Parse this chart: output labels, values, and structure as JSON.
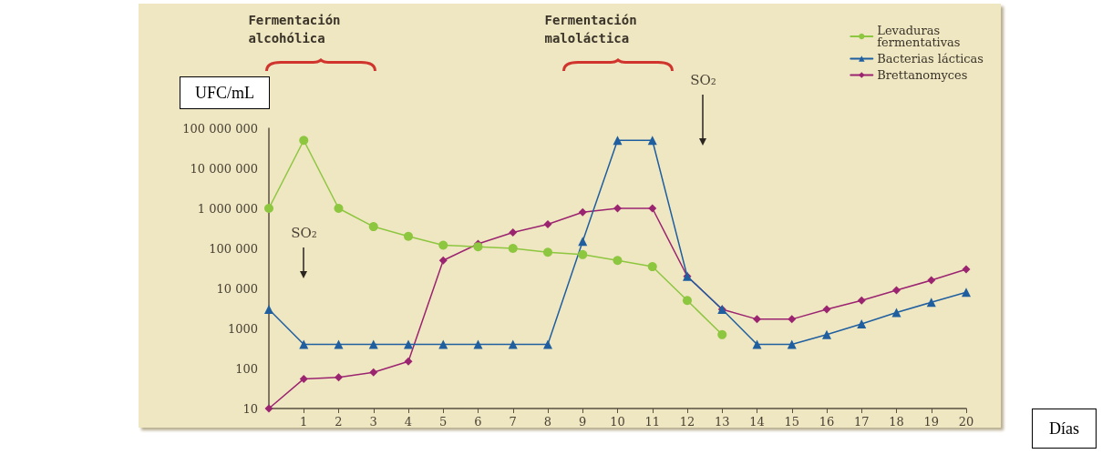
{
  "chart_data": {
    "type": "line",
    "xlabel": "Días",
    "ylabel": "UFC/mL",
    "x": [
      0,
      1,
      2,
      3,
      4,
      5,
      6,
      7,
      8,
      9,
      10,
      11,
      12,
      13,
      14,
      15,
      16,
      17,
      18,
      19,
      20
    ],
    "xlim": [
      0,
      20
    ],
    "xticks": [
      1,
      2,
      3,
      4,
      5,
      6,
      7,
      8,
      9,
      10,
      11,
      12,
      13,
      14,
      15,
      16,
      17,
      18,
      19,
      20
    ],
    "ylim": [
      10,
      100000000
    ],
    "log": true,
    "yticks": [
      10,
      100,
      1000,
      {
        "value": 10000,
        "label": "10 000"
      },
      {
        "value": 100000,
        "label": "100 000"
      },
      {
        "value": 1000000,
        "label": "1 000 000"
      },
      {
        "value": 10000000,
        "label": "10 000 000"
      },
      {
        "value": 100000000,
        "label": "100 000 000"
      }
    ],
    "grid": false,
    "legend": "top right",
    "series": [
      {
        "name": "Levaduras fermentativas",
        "color": "#8dc63f",
        "marker": "circle",
        "values": [
          1000000,
          50000000,
          1000000,
          350000,
          200000,
          120000,
          110000,
          100000,
          80000,
          70000,
          50000,
          35000,
          5000,
          700,
          null,
          null,
          null,
          null,
          null,
          null,
          null
        ]
      },
      {
        "name": "Bacterias lácticas",
        "color": "#1f5fa0",
        "marker": "triangle",
        "values": [
          3000,
          400,
          400,
          400,
          400,
          400,
          400,
          400,
          400,
          150000,
          50000000,
          50000000,
          20000,
          3000,
          400,
          400,
          700,
          1300,
          2500,
          4500,
          8000
        ]
      },
      {
        "name": "Brettanomyces",
        "color": "#9b2470",
        "marker": "diamond",
        "values": [
          10,
          55,
          60,
          80,
          150,
          50000,
          130000,
          250000,
          400000,
          800000,
          1000000,
          1000000,
          20000,
          3000,
          1700,
          1700,
          3000,
          5000,
          9000,
          16000,
          30000
        ]
      }
    ],
    "annotations": [
      "Fermentación alcohólica",
      "Fermentación maloláctica",
      "SO₂",
      "SO₂"
    ]
  }
}
